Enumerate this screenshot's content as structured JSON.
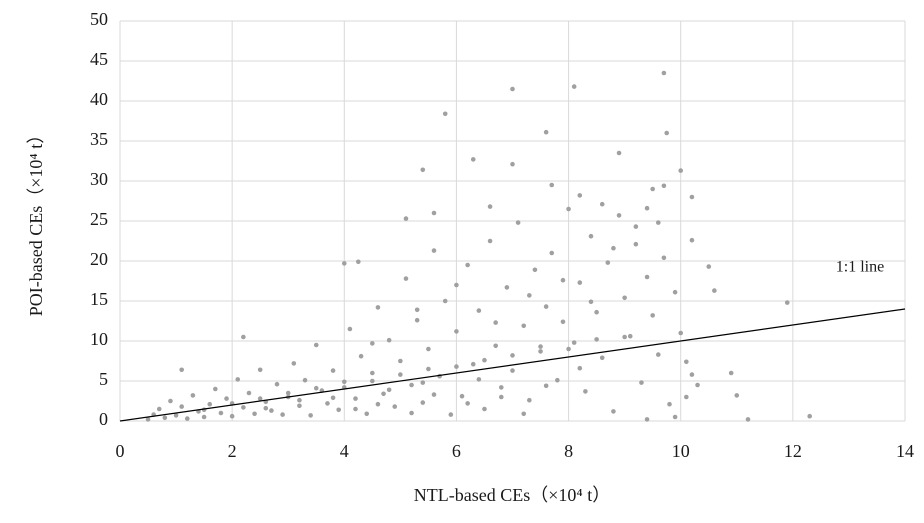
{
  "chart_data": {
    "type": "scatter",
    "x_label": "NTL-based CEs（×10⁴ t）",
    "y_label": "POI-based CEs（×10⁴ t）",
    "color": "#a0a0a0",
    "grid": true,
    "xlim": [
      0,
      14
    ],
    "xticks": [
      0,
      2,
      4,
      6,
      8,
      10,
      12,
      14
    ],
    "ylim": [
      0,
      50
    ],
    "yticks": [
      0,
      5,
      10,
      15,
      20,
      25,
      30,
      35,
      40,
      45,
      50
    ],
    "reference_line": {
      "label": "1:1 line",
      "slope": 1
    },
    "x": [
      5.8,
      7.0,
      8.1,
      9.7,
      7.6,
      9.75,
      6.3,
      7.0,
      8.9,
      10.0,
      5.4,
      9.5,
      9.7,
      10.2,
      11.9,
      12.3,
      11.2,
      11.0,
      10.9,
      10.6,
      10.5,
      10.2,
      4.0,
      4.25,
      2.2,
      1.1,
      5.1,
      5.6,
      6.6,
      7.7,
      8.2,
      9.6,
      10.3,
      10.1,
      9.9,
      9.4,
      10.2,
      0.5,
      0.6,
      0.7,
      0.8,
      0.9,
      1.0,
      1.1,
      1.2,
      1.3,
      1.4,
      1.5,
      1.6,
      1.7,
      1.8,
      1.9,
      2.0,
      2.1,
      2.2,
      2.3,
      2.4,
      2.5,
      2.6,
      2.7,
      2.8,
      2.9,
      3.0,
      3.1,
      3.2,
      3.3,
      3.4,
      3.5,
      3.6,
      3.7,
      3.8,
      3.9,
      4.0,
      4.1,
      4.2,
      4.3,
      4.4,
      4.5,
      4.6,
      4.7,
      4.8,
      4.9,
      5.0,
      5.1,
      5.2,
      5.3,
      5.4,
      5.5,
      5.6,
      5.7,
      5.8,
      5.9,
      6.0,
      6.1,
      6.2,
      6.3,
      6.4,
      6.5,
      6.6,
      6.7,
      6.8,
      6.9,
      7.0,
      7.1,
      7.2,
      7.3,
      7.4,
      7.5,
      7.6,
      7.7,
      7.8,
      7.9,
      8.0,
      8.1,
      8.2,
      8.3,
      8.4,
      8.5,
      8.6,
      8.7,
      8.8,
      8.9,
      9.0,
      9.1,
      9.2,
      9.3,
      9.4,
      9.5,
      9.6,
      9.7,
      9.8,
      9.9,
      10.0,
      10.1,
      1.5,
      2.0,
      2.5,
      3.0,
      3.5,
      4.0,
      4.5,
      5.0,
      5.5,
      6.0,
      6.5,
      7.0,
      7.5,
      8.0,
      8.5,
      9.0,
      4.2,
      4.6,
      5.2,
      5.6,
      6.2,
      6.8,
      7.2,
      7.6,
      8.2,
      6.4,
      5.4,
      4.8,
      3.8,
      3.2,
      2.6,
      6.7,
      7.3,
      7.9,
      8.4,
      8.8,
      9.2,
      6.0,
      5.3,
      4.5,
      8.6,
      9.4
    ],
    "values": [
      38.4,
      41.5,
      41.8,
      43.5,
      36.1,
      36,
      32.7,
      32.1,
      33.5,
      31.3,
      31.4,
      29,
      29.4,
      28,
      14.8,
      0.6,
      0.2,
      3.2,
      6,
      16.3,
      19.3,
      22.6,
      19.7,
      19.9,
      10.5,
      6.4,
      25.3,
      26,
      26.8,
      29.5,
      28.2,
      24.8,
      4.5,
      3,
      0.5,
      0.2,
      5.8,
      0.2,
      0.8,
      1.5,
      0.4,
      2.5,
      0.7,
      1.8,
      0.3,
      3.2,
      1.2,
      0.5,
      2.1,
      4.0,
      1.0,
      2.8,
      0.6,
      5.2,
      1.7,
      3.5,
      0.9,
      6.4,
      2.4,
      1.3,
      4.6,
      0.8,
      3.0,
      7.2,
      1.9,
      5.1,
      0.7,
      9.5,
      3.8,
      2.2,
      6.3,
      1.4,
      4.9,
      11.5,
      2.8,
      8.1,
      0.9,
      6.0,
      14.2,
      3.4,
      10.1,
      1.8,
      7.5,
      17.8,
      4.5,
      12.6,
      2.3,
      9.0,
      21.3,
      5.6,
      15.0,
      0.8,
      11.2,
      3.1,
      19.5,
      7.1,
      13.8,
      1.5,
      22.5,
      9.4,
      4.2,
      16.7,
      6.3,
      24.8,
      11.9,
      2.6,
      18.9,
      8.7,
      14.3,
      21.0,
      5.1,
      12.4,
      26.5,
      9.8,
      17.3,
      3.7,
      23.1,
      13.6,
      7.9,
      19.8,
      1.2,
      25.7,
      15.4,
      10.6,
      22.1,
      4.8,
      18.0,
      13.2,
      8.3,
      20.4,
      2.1,
      16.1,
      11.0,
      7.4,
      1.4,
      2.2,
      2.8,
      3.5,
      4.1,
      4.2,
      5.0,
      5.8,
      6.5,
      6.8,
      7.6,
      8.2,
      9.3,
      9.0,
      10.2,
      10.5,
      1.5,
      2.1,
      1.0,
      3.3,
      2.2,
      3.0,
      0.9,
      4.4,
      6.6,
      5.2,
      4.8,
      3.9,
      2.9,
      2.6,
      1.6,
      12.3,
      15.7,
      17.6,
      14.9,
      21.6,
      24.3,
      17.0,
      13.9,
      9.7,
      27.1,
      26.6
    ]
  }
}
